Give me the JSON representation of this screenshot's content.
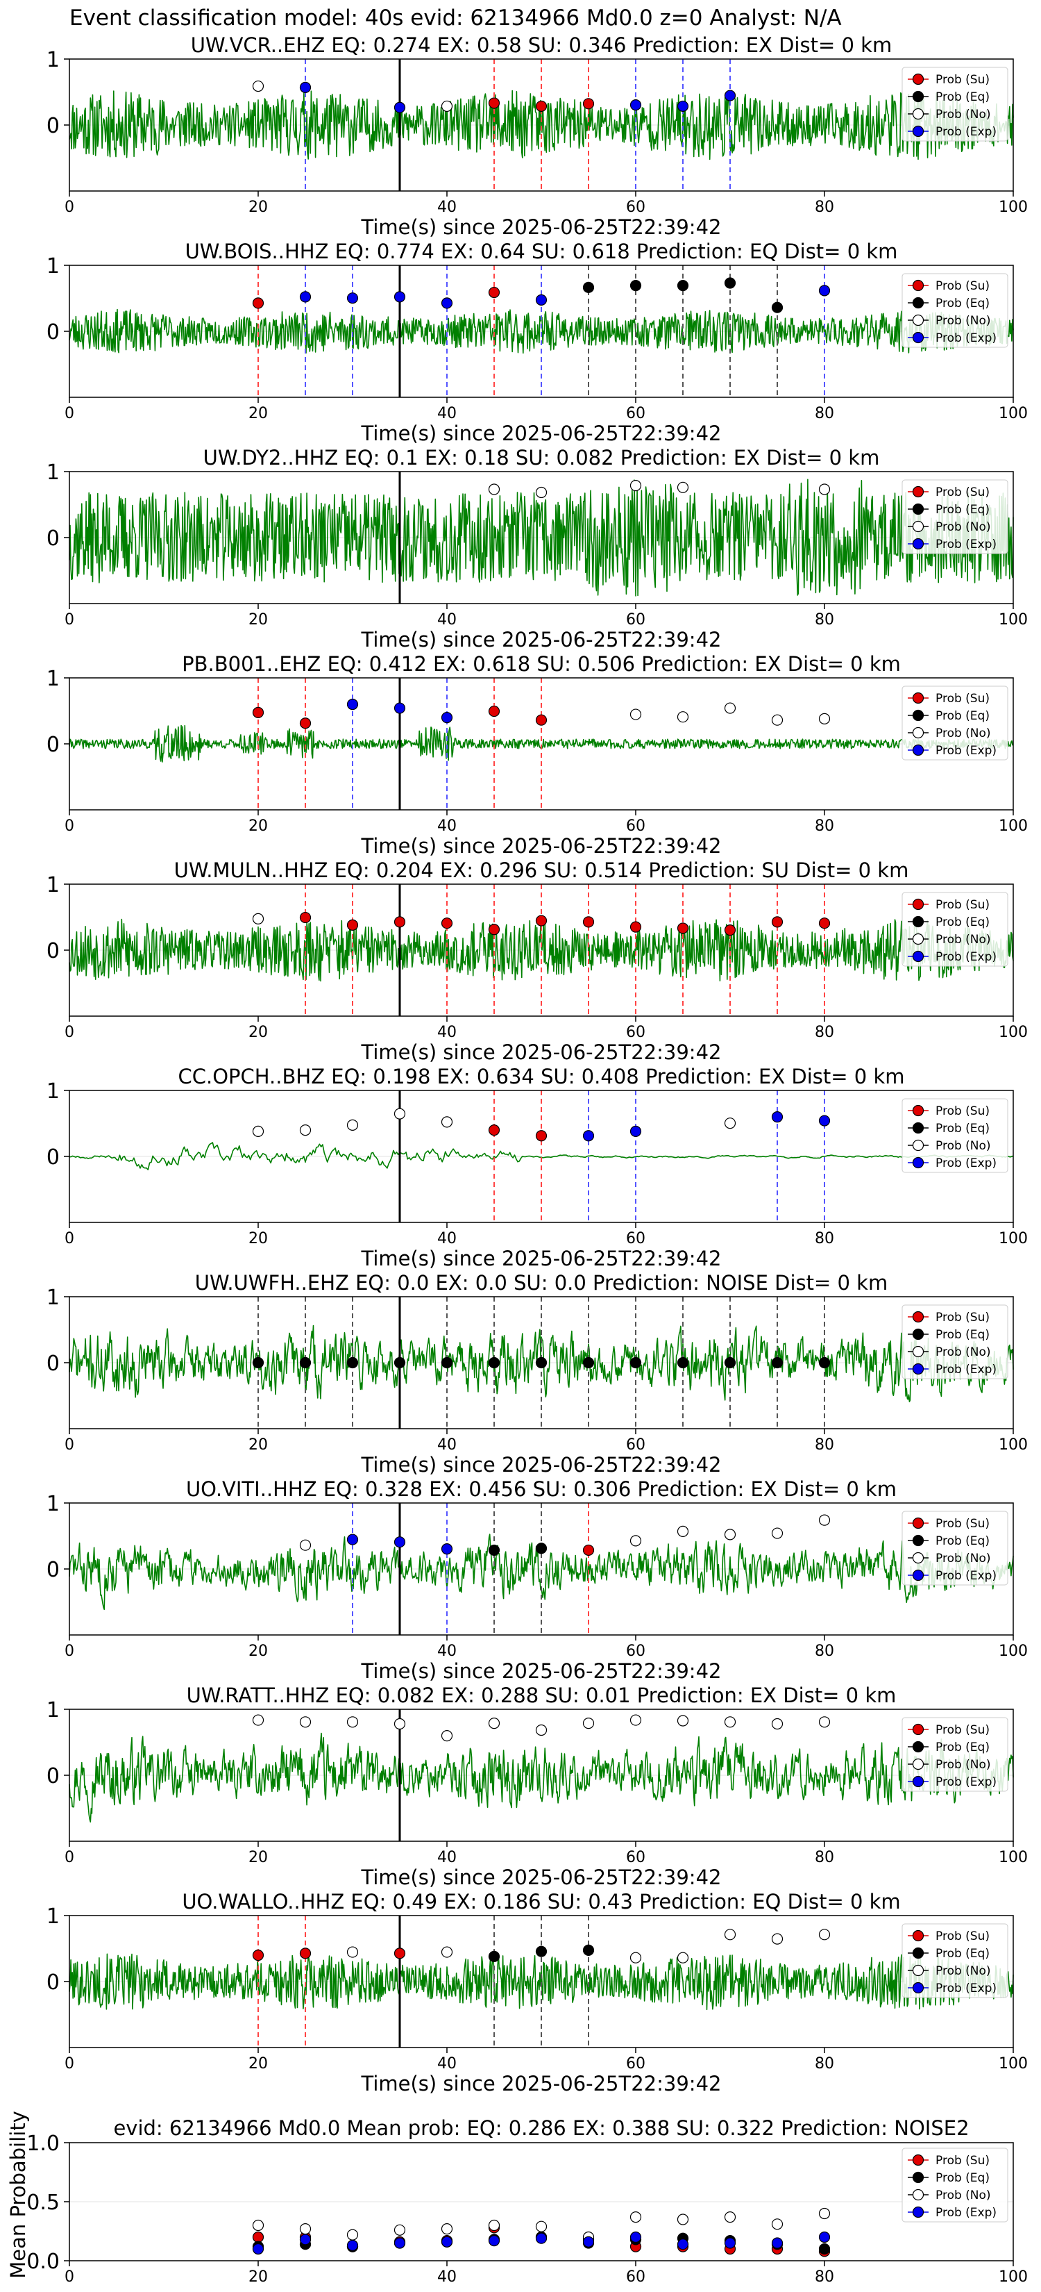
{
  "title": "Event classification model: 40s evid: 62134966 Md0.0 z=0 Analyst: N/A",
  "legend": [
    "Prob (Su)",
    "Prob (Eq)",
    "Prob (No)",
    "Prob (Exp)"
  ],
  "colors": {
    "su": "#e00000",
    "eq": "#000000",
    "no": "#ffffff",
    "exp": "#0000ee",
    "trace": "#008000",
    "su_line": "#ff4444",
    "eq_line": "#555555",
    "exp_line": "#5555ff"
  },
  "chart_data": [
    {
      "type": "line",
      "title": "UW.VCR..EHZ   EQ: 0.274  EX: 0.58  SU: 0.346   Prediction: EX    Dist= 0 km",
      "xlabel": "Time(s) since 2025-06-25T22:39:42",
      "xlim": [
        0,
        100
      ],
      "ylim": [
        -1,
        1
      ],
      "xticks": [
        0,
        20,
        40,
        60,
        80,
        100
      ],
      "yticks": [
        0,
        1
      ],
      "event_line": 35,
      "trace_amp": 0.55,
      "trace_seed": 11,
      "trace_style": "hf",
      "points": [
        {
          "t": 20,
          "cls": "no",
          "p": 0.62
        },
        {
          "t": 25,
          "cls": "exp",
          "p": 0.6
        },
        {
          "t": 35,
          "cls": "exp",
          "p": 0.28
        },
        {
          "t": 40,
          "cls": "no",
          "p": 0.3
        },
        {
          "t": 45,
          "cls": "su",
          "p": 0.35
        },
        {
          "t": 50,
          "cls": "su",
          "p": 0.3
        },
        {
          "t": 55,
          "cls": "su",
          "p": 0.34
        },
        {
          "t": 60,
          "cls": "exp",
          "p": 0.32
        },
        {
          "t": 65,
          "cls": "exp",
          "p": 0.3
        },
        {
          "t": 70,
          "cls": "exp",
          "p": 0.47
        }
      ]
    },
    {
      "type": "line",
      "title": "UW.BOIS..HHZ   EQ: 0.774  EX: 0.64  SU: 0.618   Prediction: EQ    Dist= 0 km",
      "xlabel": "Time(s) since 2025-06-25T22:39:42",
      "xlim": [
        0,
        100
      ],
      "ylim": [
        -1,
        1
      ],
      "xticks": [
        0,
        20,
        40,
        60,
        80,
        100
      ],
      "yticks": [
        0,
        1
      ],
      "event_line": 35,
      "trace_amp": 0.35,
      "trace_seed": 23,
      "trace_style": "hf",
      "points": [
        {
          "t": 20,
          "cls": "su",
          "p": 0.45
        },
        {
          "t": 25,
          "cls": "exp",
          "p": 0.55
        },
        {
          "t": 30,
          "cls": "exp",
          "p": 0.53
        },
        {
          "t": 35,
          "cls": "exp",
          "p": 0.55
        },
        {
          "t": 40,
          "cls": "exp",
          "p": 0.45
        },
        {
          "t": 45,
          "cls": "su",
          "p": 0.62
        },
        {
          "t": 50,
          "cls": "exp",
          "p": 0.5
        },
        {
          "t": 55,
          "cls": "eq",
          "p": 0.7
        },
        {
          "t": 60,
          "cls": "eq",
          "p": 0.73
        },
        {
          "t": 65,
          "cls": "eq",
          "p": 0.73
        },
        {
          "t": 70,
          "cls": "eq",
          "p": 0.77
        },
        {
          "t": 75,
          "cls": "eq",
          "p": 0.38
        },
        {
          "t": 80,
          "cls": "exp",
          "p": 0.65
        }
      ]
    },
    {
      "type": "line",
      "title": "UW.DY2..HHZ   EQ: 0.1  EX: 0.18  SU: 0.082   Prediction: EX    Dist= 0 km",
      "xlabel": "Time(s) since 2025-06-25T22:39:42",
      "xlim": [
        0,
        100
      ],
      "ylim": [
        -1,
        1
      ],
      "xticks": [
        0,
        20,
        40,
        60,
        80,
        100
      ],
      "yticks": [
        0,
        1
      ],
      "event_line": 35,
      "trace_amp": 0.85,
      "trace_seed": 37,
      "trace_style": "dense",
      "points": [
        {
          "t": 45,
          "cls": "no",
          "p": 0.77
        },
        {
          "t": 50,
          "cls": "no",
          "p": 0.72
        },
        {
          "t": 60,
          "cls": "no",
          "p": 0.83
        },
        {
          "t": 65,
          "cls": "no",
          "p": 0.8
        },
        {
          "t": 80,
          "cls": "no",
          "p": 0.77
        }
      ]
    },
    {
      "type": "line",
      "title": "PB.B001..EHZ   EQ: 0.412  EX: 0.618  SU: 0.506   Prediction: EX    Dist= 0 km",
      "xlabel": "Time(s) since 2025-06-25T22:39:42",
      "xlim": [
        0,
        100
      ],
      "ylim": [
        -1,
        1
      ],
      "xticks": [
        0,
        20,
        40,
        60,
        80,
        100
      ],
      "yticks": [
        0,
        1
      ],
      "event_line": 35,
      "trace_amp": 0.3,
      "trace_seed": 41,
      "trace_style": "bursts",
      "points": [
        {
          "t": 20,
          "cls": "su",
          "p": 0.5
        },
        {
          "t": 25,
          "cls": "su",
          "p": 0.33
        },
        {
          "t": 30,
          "cls": "exp",
          "p": 0.63
        },
        {
          "t": 35,
          "cls": "exp",
          "p": 0.57
        },
        {
          "t": 40,
          "cls": "exp",
          "p": 0.42
        },
        {
          "t": 45,
          "cls": "su",
          "p": 0.52
        },
        {
          "t": 50,
          "cls": "su",
          "p": 0.38
        },
        {
          "t": 60,
          "cls": "no",
          "p": 0.47
        },
        {
          "t": 65,
          "cls": "no",
          "p": 0.43
        },
        {
          "t": 70,
          "cls": "no",
          "p": 0.57
        },
        {
          "t": 75,
          "cls": "no",
          "p": 0.38
        },
        {
          "t": 80,
          "cls": "no",
          "p": 0.4
        }
      ]
    },
    {
      "type": "line",
      "title": "UW.MULN..HHZ   EQ: 0.204  EX: 0.296  SU: 0.514   Prediction: SU    Dist= 0 km",
      "xlabel": "Time(s) since 2025-06-25T22:39:42",
      "xlim": [
        0,
        100
      ],
      "ylim": [
        -1,
        1
      ],
      "xticks": [
        0,
        20,
        40,
        60,
        80,
        100
      ],
      "yticks": [
        0,
        1
      ],
      "event_line": 35,
      "trace_amp": 0.5,
      "trace_seed": 53,
      "trace_style": "hf",
      "points": [
        {
          "t": 20,
          "cls": "no",
          "p": 0.5
        },
        {
          "t": 25,
          "cls": "su",
          "p": 0.52
        },
        {
          "t": 30,
          "cls": "su",
          "p": 0.4
        },
        {
          "t": 35,
          "cls": "su",
          "p": 0.45
        },
        {
          "t": 40,
          "cls": "su",
          "p": 0.43
        },
        {
          "t": 45,
          "cls": "su",
          "p": 0.33
        },
        {
          "t": 50,
          "cls": "su",
          "p": 0.47
        },
        {
          "t": 55,
          "cls": "su",
          "p": 0.45
        },
        {
          "t": 60,
          "cls": "su",
          "p": 0.37
        },
        {
          "t": 65,
          "cls": "su",
          "p": 0.35
        },
        {
          "t": 70,
          "cls": "su",
          "p": 0.32
        },
        {
          "t": 75,
          "cls": "su",
          "p": 0.45
        },
        {
          "t": 80,
          "cls": "su",
          "p": 0.43
        }
      ]
    },
    {
      "type": "line",
      "title": "CC.OPCH..BHZ   EQ: 0.198  EX: 0.634  SU: 0.408   Prediction: EX    Dist= 0 km",
      "xlabel": "Time(s) since 2025-06-25T22:39:42",
      "xlim": [
        0,
        100
      ],
      "ylim": [
        -1,
        1
      ],
      "xticks": [
        0,
        20,
        40,
        60,
        80,
        100
      ],
      "yticks": [
        0,
        1
      ],
      "event_line": 35,
      "trace_amp": 0.15,
      "trace_seed": 67,
      "trace_style": "lf",
      "points": [
        {
          "t": 20,
          "cls": "no",
          "p": 0.4
        },
        {
          "t": 25,
          "cls": "no",
          "p": 0.42
        },
        {
          "t": 30,
          "cls": "no",
          "p": 0.5
        },
        {
          "t": 35,
          "cls": "no",
          "p": 0.68
        },
        {
          "t": 40,
          "cls": "no",
          "p": 0.55
        },
        {
          "t": 45,
          "cls": "su",
          "p": 0.42
        },
        {
          "t": 50,
          "cls": "su",
          "p": 0.33
        },
        {
          "t": 55,
          "cls": "exp",
          "p": 0.33
        },
        {
          "t": 60,
          "cls": "exp",
          "p": 0.4
        },
        {
          "t": 70,
          "cls": "no",
          "p": 0.53
        },
        {
          "t": 75,
          "cls": "exp",
          "p": 0.63
        },
        {
          "t": 80,
          "cls": "exp",
          "p": 0.57
        }
      ]
    },
    {
      "type": "line",
      "title": "UW.UWFH..EHZ   EQ: 0.0  EX: 0.0  SU: 0.0   Prediction: NOISE    Dist= 0 km",
      "xlabel": "Time(s) since 2025-06-25T22:39:42",
      "xlim": [
        0,
        100
      ],
      "ylim": [
        -1,
        1
      ],
      "xticks": [
        0,
        20,
        40,
        60,
        80,
        100
      ],
      "yticks": [
        0,
        1
      ],
      "event_line": 35,
      "trace_amp": 0.55,
      "trace_seed": 71,
      "trace_style": "mid",
      "points": [
        {
          "t": 20,
          "cls": "eq",
          "p": 0.0
        },
        {
          "t": 25,
          "cls": "eq",
          "p": 0.0
        },
        {
          "t": 30,
          "cls": "eq",
          "p": 0.0
        },
        {
          "t": 35,
          "cls": "eq",
          "p": 0.0
        },
        {
          "t": 40,
          "cls": "eq",
          "p": 0.0
        },
        {
          "t": 45,
          "cls": "eq",
          "p": 0.0
        },
        {
          "t": 50,
          "cls": "eq",
          "p": 0.0
        },
        {
          "t": 55,
          "cls": "eq",
          "p": 0.0
        },
        {
          "t": 60,
          "cls": "eq",
          "p": 0.0
        },
        {
          "t": 65,
          "cls": "eq",
          "p": 0.0
        },
        {
          "t": 70,
          "cls": "eq",
          "p": 0.0
        },
        {
          "t": 75,
          "cls": "eq",
          "p": 0.0
        },
        {
          "t": 80,
          "cls": "eq",
          "p": 0.0
        }
      ]
    },
    {
      "type": "line",
      "title": "UO.VITI..HHZ   EQ: 0.328  EX: 0.456  SU: 0.306   Prediction: EX    Dist= 0 km",
      "xlabel": "Time(s) since 2025-06-25T22:39:42",
      "xlim": [
        0,
        100
      ],
      "ylim": [
        -1,
        1
      ],
      "xticks": [
        0,
        20,
        40,
        60,
        80,
        100
      ],
      "yticks": [
        0,
        1
      ],
      "event_line": 35,
      "trace_amp": 0.45,
      "trace_seed": 83,
      "trace_style": "mid",
      "points": [
        {
          "t": 25,
          "cls": "no",
          "p": 0.38
        },
        {
          "t": 30,
          "cls": "exp",
          "p": 0.47
        },
        {
          "t": 35,
          "cls": "exp",
          "p": 0.43
        },
        {
          "t": 40,
          "cls": "exp",
          "p": 0.32
        },
        {
          "t": 45,
          "cls": "eq",
          "p": 0.3
        },
        {
          "t": 50,
          "cls": "eq",
          "p": 0.33
        },
        {
          "t": 55,
          "cls": "su",
          "p": 0.3
        },
        {
          "t": 60,
          "cls": "no",
          "p": 0.45
        },
        {
          "t": 65,
          "cls": "no",
          "p": 0.6
        },
        {
          "t": 70,
          "cls": "no",
          "p": 0.55
        },
        {
          "t": 75,
          "cls": "no",
          "p": 0.57
        },
        {
          "t": 80,
          "cls": "no",
          "p": 0.78
        }
      ]
    },
    {
      "type": "line",
      "title": "UW.RATT..HHZ   EQ: 0.082  EX: 0.288  SU: 0.01   Prediction: EX    Dist= 0 km",
      "xlabel": "Time(s) since 2025-06-25T22:39:42",
      "xlim": [
        0,
        100
      ],
      "ylim": [
        -1,
        1
      ],
      "xticks": [
        0,
        20,
        40,
        60,
        80,
        100
      ],
      "yticks": [
        0,
        1
      ],
      "event_line": 35,
      "trace_amp": 0.55,
      "trace_seed": 97,
      "trace_style": "mid",
      "points": [
        {
          "t": 20,
          "cls": "no",
          "p": 0.88
        },
        {
          "t": 25,
          "cls": "no",
          "p": 0.85
        },
        {
          "t": 30,
          "cls": "no",
          "p": 0.85
        },
        {
          "t": 35,
          "cls": "no",
          "p": 0.82
        },
        {
          "t": 40,
          "cls": "no",
          "p": 0.63
        },
        {
          "t": 45,
          "cls": "no",
          "p": 0.83
        },
        {
          "t": 50,
          "cls": "no",
          "p": 0.72
        },
        {
          "t": 55,
          "cls": "no",
          "p": 0.83
        },
        {
          "t": 60,
          "cls": "no",
          "p": 0.88
        },
        {
          "t": 65,
          "cls": "no",
          "p": 0.87
        },
        {
          "t": 70,
          "cls": "no",
          "p": 0.85
        },
        {
          "t": 75,
          "cls": "no",
          "p": 0.82
        },
        {
          "t": 80,
          "cls": "no",
          "p": 0.85
        }
      ]
    },
    {
      "type": "line",
      "title": "UO.WALLO..HHZ   EQ: 0.49  EX: 0.186  SU: 0.43   Prediction: EQ    Dist= 0 km",
      "xlabel": "Time(s) since 2025-06-25T22:39:42",
      "xlim": [
        0,
        100
      ],
      "ylim": [
        -1,
        1
      ],
      "xticks": [
        0,
        20,
        40,
        60,
        80,
        100
      ],
      "yticks": [
        0,
        1
      ],
      "event_line": 35,
      "trace_amp": 0.45,
      "trace_seed": 101,
      "trace_style": "hf",
      "points": [
        {
          "t": 20,
          "cls": "su",
          "p": 0.42
        },
        {
          "t": 25,
          "cls": "su",
          "p": 0.45
        },
        {
          "t": 30,
          "cls": "no",
          "p": 0.47
        },
        {
          "t": 35,
          "cls": "su",
          "p": 0.45
        },
        {
          "t": 40,
          "cls": "no",
          "p": 0.47
        },
        {
          "t": 45,
          "cls": "eq",
          "p": 0.4
        },
        {
          "t": 50,
          "cls": "eq",
          "p": 0.48
        },
        {
          "t": 55,
          "cls": "eq",
          "p": 0.5
        },
        {
          "t": 60,
          "cls": "no",
          "p": 0.38
        },
        {
          "t": 65,
          "cls": "no",
          "p": 0.38
        },
        {
          "t": 70,
          "cls": "no",
          "p": 0.75
        },
        {
          "t": 75,
          "cls": "no",
          "p": 0.68
        },
        {
          "t": 80,
          "cls": "no",
          "p": 0.75
        }
      ]
    },
    {
      "type": "scatter",
      "title": "evid: 62134966  Md0.0   Mean prob:   EQ: 0.286  EX: 0.388  SU: 0.322   Prediction: NOISE2",
      "ylabel": "Mean Probability",
      "xlim": [
        0,
        100
      ],
      "ylim": [
        0,
        1
      ],
      "xticks": [
        0,
        20,
        40,
        60,
        80,
        100
      ],
      "yticks": [
        0.0,
        0.5,
        1.0
      ],
      "ytick_labels": [
        "0.0",
        "0.5",
        "1.0"
      ],
      "series": [
        {
          "name": "Prob (Su)",
          "cls": "su",
          "x": [
            20,
            25,
            30,
            35,
            40,
            45,
            50,
            55,
            60,
            65,
            70,
            75,
            80
          ],
          "y": [
            0.2,
            0.2,
            0.12,
            0.16,
            0.17,
            0.28,
            0.2,
            0.18,
            0.12,
            0.12,
            0.1,
            0.1,
            0.08
          ]
        },
        {
          "name": "Prob (Eq)",
          "cls": "eq",
          "x": [
            20,
            25,
            30,
            35,
            40,
            45,
            50,
            55,
            60,
            65,
            70,
            75,
            80
          ],
          "y": [
            0.12,
            0.14,
            0.12,
            0.15,
            0.16,
            0.18,
            0.2,
            0.15,
            0.18,
            0.19,
            0.17,
            0.14,
            0.1
          ]
        },
        {
          "name": "Prob (No)",
          "cls": "no",
          "x": [
            20,
            25,
            30,
            35,
            40,
            45,
            50,
            55,
            60,
            65,
            70,
            75,
            80
          ],
          "y": [
            0.3,
            0.27,
            0.22,
            0.26,
            0.27,
            0.3,
            0.29,
            0.2,
            0.37,
            0.35,
            0.37,
            0.31,
            0.4
          ]
        },
        {
          "name": "Prob (Exp)",
          "cls": "exp",
          "x": [
            20,
            25,
            30,
            35,
            40,
            45,
            50,
            55,
            60,
            65,
            70,
            75,
            80
          ],
          "y": [
            0.1,
            0.18,
            0.13,
            0.15,
            0.16,
            0.17,
            0.19,
            0.16,
            0.2,
            0.14,
            0.15,
            0.15,
            0.2
          ]
        }
      ]
    }
  ]
}
